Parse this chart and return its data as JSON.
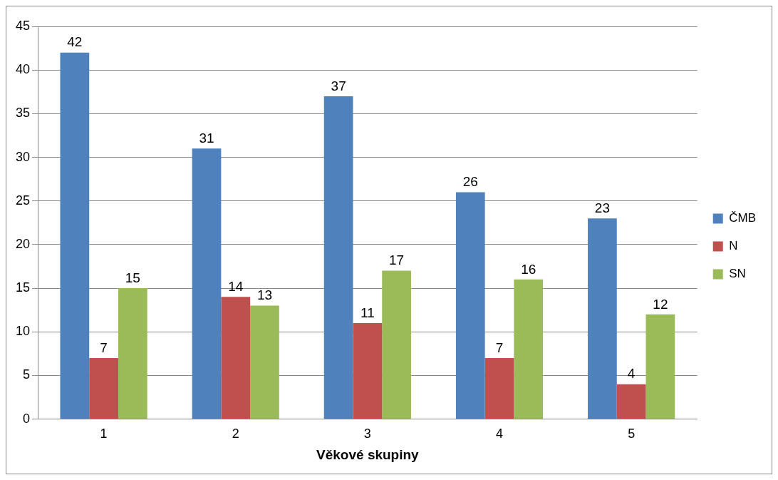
{
  "chart_data": {
    "type": "bar",
    "xlabel": "Věkové skupiny",
    "categories": [
      "1",
      "2",
      "3",
      "4",
      "5"
    ],
    "series": [
      {
        "name": "ČMB",
        "color": "#4f81bd",
        "values": [
          42,
          31,
          37,
          26,
          23
        ]
      },
      {
        "name": "N",
        "color": "#c0504d",
        "values": [
          7,
          14,
          11,
          7,
          4
        ]
      },
      {
        "name": "SN",
        "color": "#9bbb59",
        "values": [
          15,
          13,
          17,
          16,
          12
        ]
      }
    ],
    "ylim": [
      0,
      45
    ],
    "yticks": [
      0,
      5,
      10,
      15,
      20,
      25,
      30,
      35,
      40,
      45
    ],
    "grid": "y",
    "legend": "right",
    "data_labels": true
  }
}
